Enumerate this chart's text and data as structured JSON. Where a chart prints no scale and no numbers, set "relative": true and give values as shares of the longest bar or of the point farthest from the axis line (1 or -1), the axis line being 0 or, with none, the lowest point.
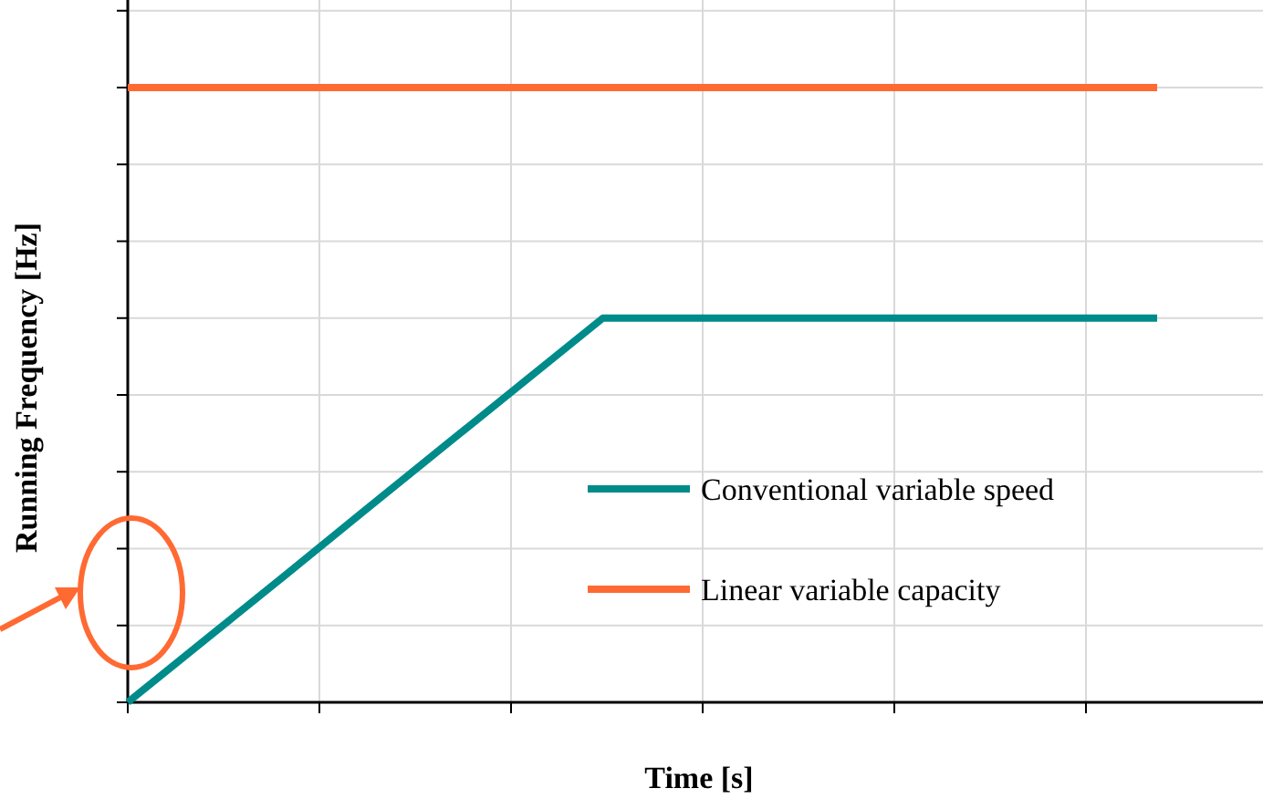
{
  "chart_data": {
    "type": "line",
    "relative": true,
    "xlabel": "Time [s]",
    "ylabel": "Running Frequency [Hz]",
    "categories": [
      null,
      null,
      null,
      null,
      null,
      null,
      null,
      null,
      null,
      null,
      null,
      null,
      null,
      null
    ],
    "grid": true,
    "legend": "bottom right",
    "series": [
      {
        "name": "Conventional variable speed",
        "color": "#008b8b",
        "values": [
          0,
          0.104,
          0.208,
          0.313,
          0.417,
          0.521,
          0.625,
          0.625,
          0.625,
          0.625,
          0.625,
          0.625,
          0.625,
          0.625
        ]
      },
      {
        "name": "Linear variable capacity",
        "color": "#ff6a33",
        "values": [
          1,
          1,
          1,
          1,
          1,
          1,
          1,
          1,
          1,
          1,
          1,
          1,
          1,
          1
        ]
      }
    ]
  }
}
